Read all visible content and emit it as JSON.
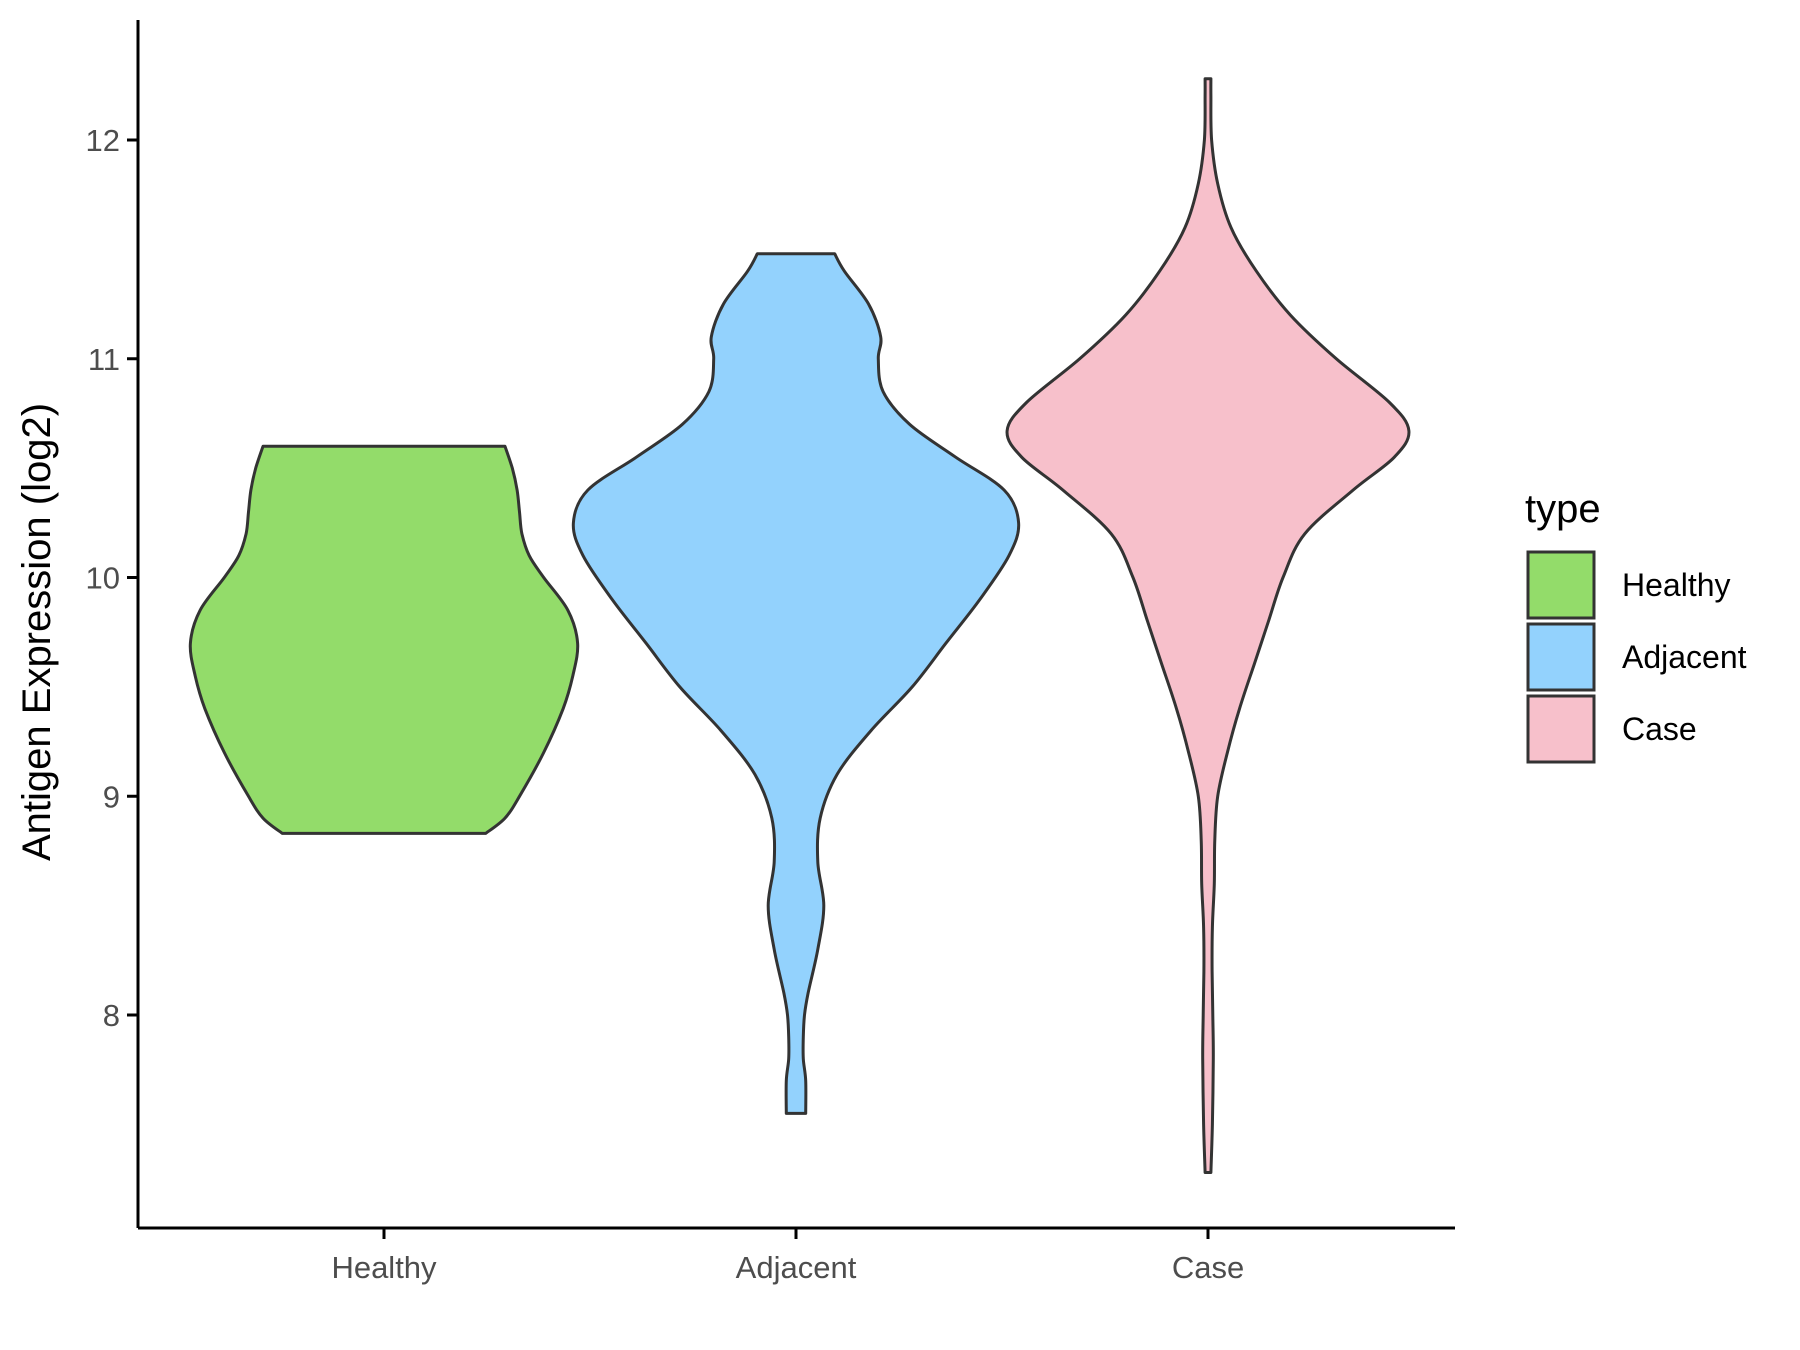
{
  "chart_data": {
    "type": "violin",
    "title": "",
    "xlabel": "",
    "ylabel": "Antigen Expression (log2)",
    "ylim": [
      7.1,
      12.6
    ],
    "yticks": [
      8,
      9,
      10,
      11,
      12
    ],
    "yticklabels": [
      "8",
      "9",
      "10",
      "11",
      "12"
    ],
    "categories": [
      "Healthy",
      "Adjacent",
      "Case"
    ],
    "legend": {
      "title": "type",
      "position": "right",
      "entries": [
        "Healthy",
        "Adjacent",
        "Case"
      ]
    },
    "colors": {
      "Healthy": "#93dc6a",
      "Adjacent": "#93d2fd",
      "Case": "#f7c0cb",
      "outline": "#333333"
    },
    "grid": false,
    "series": [
      {
        "name": "Healthy",
        "min": 8.83,
        "max": 10.6,
        "density_profile": [
          [
            8.83,
            0.42
          ],
          [
            8.9,
            0.5
          ],
          [
            9.0,
            0.56
          ],
          [
            9.2,
            0.66
          ],
          [
            9.4,
            0.74
          ],
          [
            9.55,
            0.78
          ],
          [
            9.7,
            0.8
          ],
          [
            9.85,
            0.76
          ],
          [
            10.0,
            0.66
          ],
          [
            10.1,
            0.6
          ],
          [
            10.2,
            0.57
          ],
          [
            10.3,
            0.56
          ],
          [
            10.4,
            0.55
          ],
          [
            10.5,
            0.53
          ],
          [
            10.6,
            0.5
          ]
        ]
      },
      {
        "name": "Adjacent",
        "min": 7.55,
        "max": 11.48,
        "density_profile": [
          [
            7.55,
            0.04
          ],
          [
            7.7,
            0.04
          ],
          [
            7.8,
            0.03
          ],
          [
            7.9,
            0.03
          ],
          [
            8.0,
            0.035
          ],
          [
            8.1,
            0.05
          ],
          [
            8.3,
            0.09
          ],
          [
            8.5,
            0.115
          ],
          [
            8.7,
            0.09
          ],
          [
            8.9,
            0.1
          ],
          [
            9.1,
            0.17
          ],
          [
            9.3,
            0.31
          ],
          [
            9.5,
            0.48
          ],
          [
            9.7,
            0.62
          ],
          [
            9.9,
            0.76
          ],
          [
            10.1,
            0.88
          ],
          [
            10.25,
            0.92
          ],
          [
            10.4,
            0.86
          ],
          [
            10.55,
            0.66
          ],
          [
            10.7,
            0.47
          ],
          [
            10.85,
            0.36
          ],
          [
            11.0,
            0.34
          ],
          [
            11.1,
            0.35
          ],
          [
            11.25,
            0.3
          ],
          [
            11.4,
            0.2
          ],
          [
            11.48,
            0.16
          ]
        ]
      },
      {
        "name": "Case",
        "min": 7.28,
        "max": 12.28,
        "density_profile": [
          [
            7.28,
            0.012
          ],
          [
            7.5,
            0.018
          ],
          [
            7.8,
            0.022
          ],
          [
            8.0,
            0.02
          ],
          [
            8.2,
            0.017
          ],
          [
            8.4,
            0.018
          ],
          [
            8.6,
            0.026
          ],
          [
            8.8,
            0.028
          ],
          [
            9.0,
            0.04
          ],
          [
            9.2,
            0.08
          ],
          [
            9.4,
            0.13
          ],
          [
            9.6,
            0.19
          ],
          [
            9.8,
            0.25
          ],
          [
            10.0,
            0.31
          ],
          [
            10.2,
            0.4
          ],
          [
            10.4,
            0.6
          ],
          [
            10.55,
            0.77
          ],
          [
            10.67,
            0.83
          ],
          [
            10.8,
            0.75
          ],
          [
            11.0,
            0.53
          ],
          [
            11.2,
            0.34
          ],
          [
            11.4,
            0.2
          ],
          [
            11.6,
            0.095
          ],
          [
            11.8,
            0.04
          ],
          [
            12.0,
            0.015
          ],
          [
            12.2,
            0.012
          ],
          [
            12.28,
            0.012
          ]
        ]
      }
    ]
  }
}
